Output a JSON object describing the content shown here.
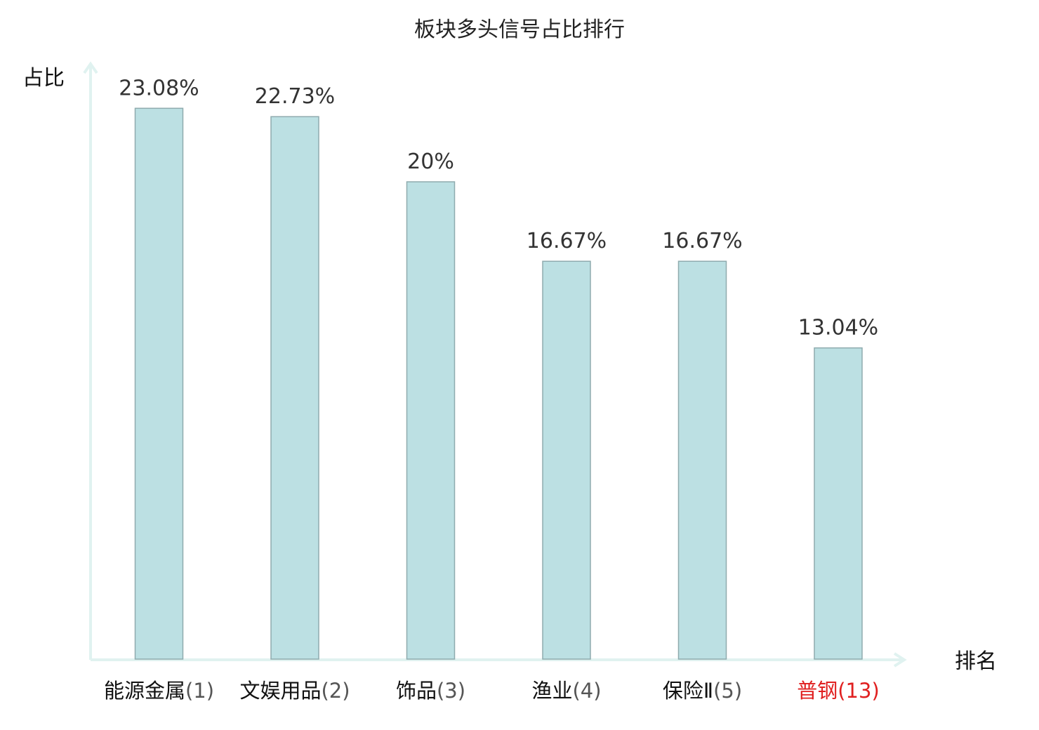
{
  "chart_data": {
    "type": "bar",
    "title": "板块多头信号占比排行",
    "ylabel": "占比",
    "xlabel": "排名",
    "categories": [
      {
        "name": "能源金属",
        "rank": "(1)"
      },
      {
        "name": "文娱用品",
        "rank": "(2)"
      },
      {
        "name": "饰品",
        "rank": "(3)"
      },
      {
        "name": "渔业",
        "rank": "(4)"
      },
      {
        "name": "保险Ⅱ",
        "rank": "(5)"
      },
      {
        "name": "普钢",
        "rank": "(13)"
      }
    ],
    "values": [
      23.08,
      22.73,
      20,
      16.67,
      16.67,
      13.04
    ],
    "value_labels": [
      "23.08%",
      "22.73%",
      "20%",
      "16.67%",
      "16.67%",
      "13.04%"
    ],
    "highlight_index": 5,
    "ylim": [
      0,
      25
    ],
    "grid": false,
    "legend": "none",
    "colors": {
      "bar_fill": "#bce0e3",
      "bar_stroke": "#8fabae",
      "axis": "#e0f2f0",
      "name_text": "#111111",
      "rank_text": "#555555",
      "highlight_text": "#e02020"
    }
  }
}
